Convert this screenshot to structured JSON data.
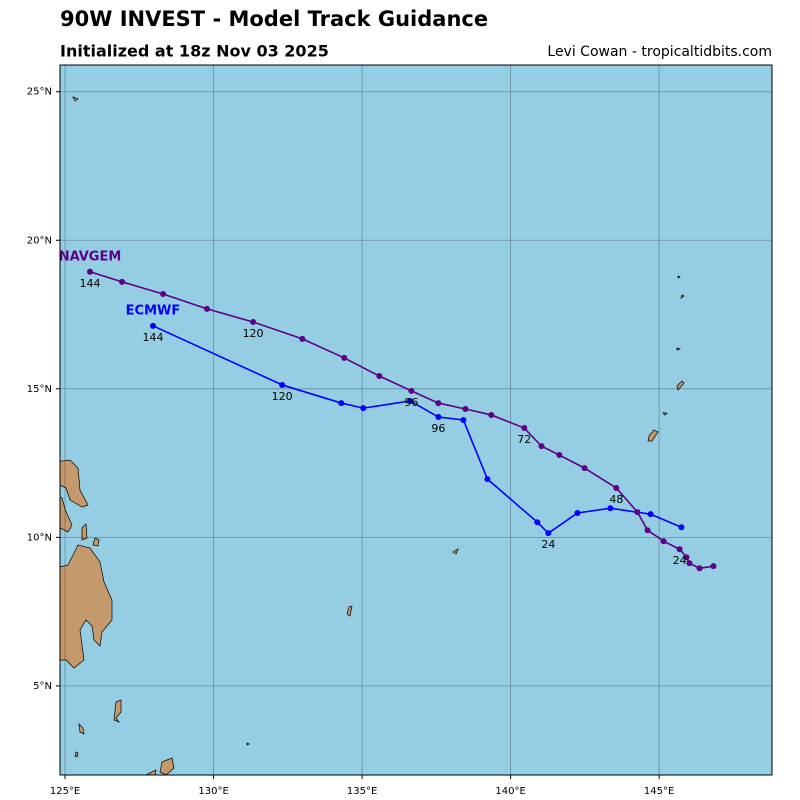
{
  "chart_data": {
    "type": "line",
    "title": "90W INVEST - Model Track Guidance",
    "subtitle": "Initialized at 18z Nov 03 2025",
    "credit": "Levi Cowan - tropicaltidbits.com",
    "background_color": "#95cde3",
    "grid": true,
    "xlim": [
      124.83,
      148.8
    ],
    "ylim": [
      2.0,
      25.9
    ],
    "xticks": [
      {
        "value": 125,
        "label": "125°E"
      },
      {
        "value": 130,
        "label": "130°E"
      },
      {
        "value": 135,
        "label": "135°E"
      },
      {
        "value": 140,
        "label": "140°E"
      },
      {
        "value": 145,
        "label": "145°E"
      }
    ],
    "yticks": [
      {
        "value": 5,
        "label": "5°N"
      },
      {
        "value": 10,
        "label": "10°N"
      },
      {
        "value": 15,
        "label": "15°N"
      },
      {
        "value": 20,
        "label": "20°N"
      },
      {
        "value": 25,
        "label": "25°N"
      }
    ],
    "series": [
      {
        "name": "ECMWF",
        "color": "#0000ff",
        "x": [
          145.75,
          144.71,
          143.36,
          142.25,
          141.27,
          140.9,
          139.22,
          138.41,
          137.57,
          136.62,
          135.04,
          134.3,
          132.31,
          127.96
        ],
        "values": [
          10.34,
          10.78,
          10.98,
          10.82,
          10.14,
          10.51,
          11.96,
          13.95,
          14.05,
          14.59,
          14.35,
          14.52,
          15.13,
          17.12
        ],
        "point_labels": [
          null,
          null,
          null,
          null,
          "24",
          null,
          null,
          null,
          "96",
          null,
          null,
          null,
          "120",
          "144"
        ]
      },
      {
        "name": "NAVGEM",
        "color": "#5c0087",
        "x": [
          146.83,
          146.36,
          146.02,
          145.92,
          145.69,
          145.15,
          144.61,
          144.27,
          143.56,
          142.49,
          141.64,
          141.04,
          140.46,
          139.35,
          138.48,
          137.57,
          136.66,
          135.58,
          134.4,
          132.99,
          131.33,
          129.78,
          128.3,
          126.92,
          125.84
        ],
        "values": [
          9.03,
          8.96,
          9.13,
          9.33,
          9.6,
          9.87,
          10.24,
          10.85,
          11.66,
          12.33,
          12.77,
          13.07,
          13.68,
          14.12,
          14.32,
          14.52,
          14.93,
          15.43,
          16.04,
          16.68,
          17.25,
          17.69,
          18.19,
          18.6,
          18.94
        ],
        "point_labels": [
          null,
          null,
          null,
          null,
          "24",
          null,
          null,
          null,
          "48",
          null,
          null,
          null,
          "72",
          null,
          null,
          null,
          "96",
          null,
          null,
          null,
          "120",
          null,
          null,
          null,
          "144"
        ]
      }
    ]
  }
}
